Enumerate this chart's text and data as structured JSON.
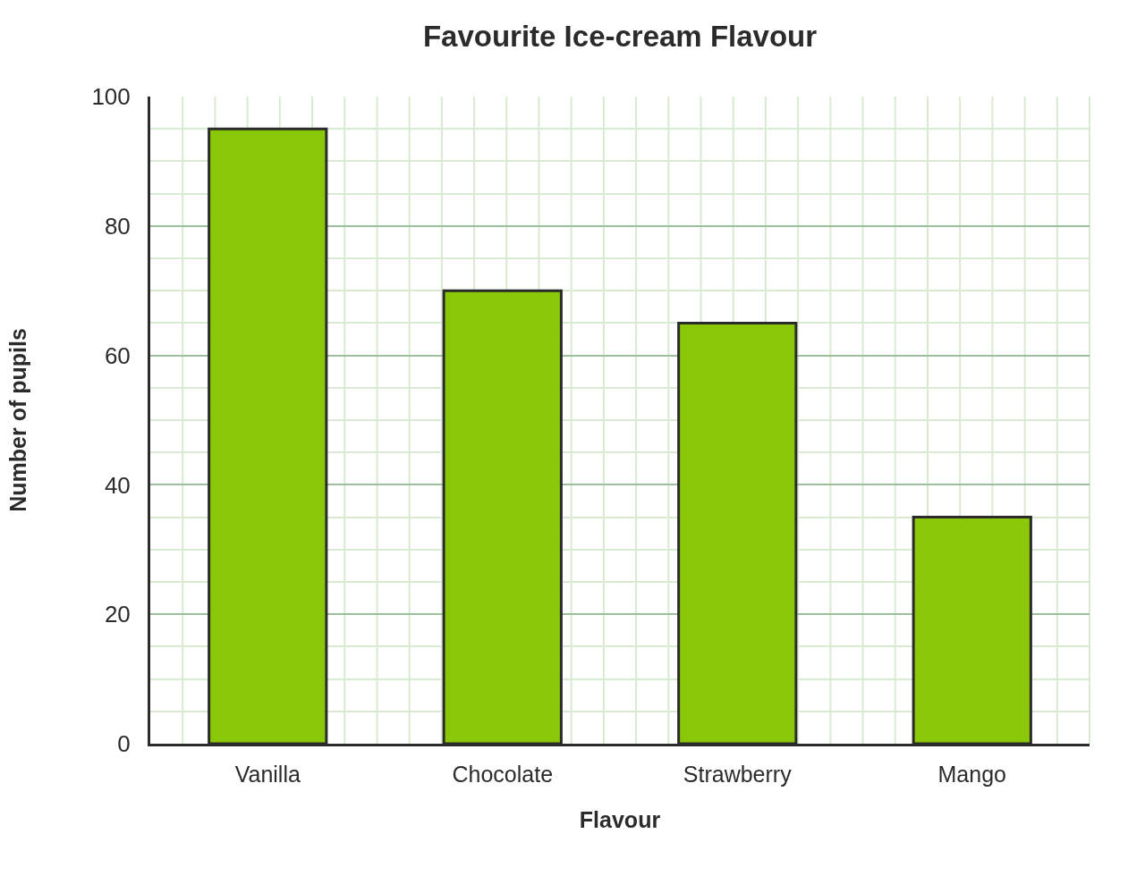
{
  "chart_data": {
    "type": "bar",
    "title": "Favourite Ice-cream Flavour",
    "xlabel": "Flavour",
    "ylabel": "Number of pupils",
    "categories": [
      "Vanilla",
      "Chocolate",
      "Strawberry",
      "Mango"
    ],
    "values": [
      95,
      70,
      65,
      35
    ],
    "color": "#8ac708",
    "ylim": [
      0,
      100
    ],
    "yticks": [
      0,
      20,
      40,
      60,
      80,
      100
    ],
    "grid": true
  }
}
